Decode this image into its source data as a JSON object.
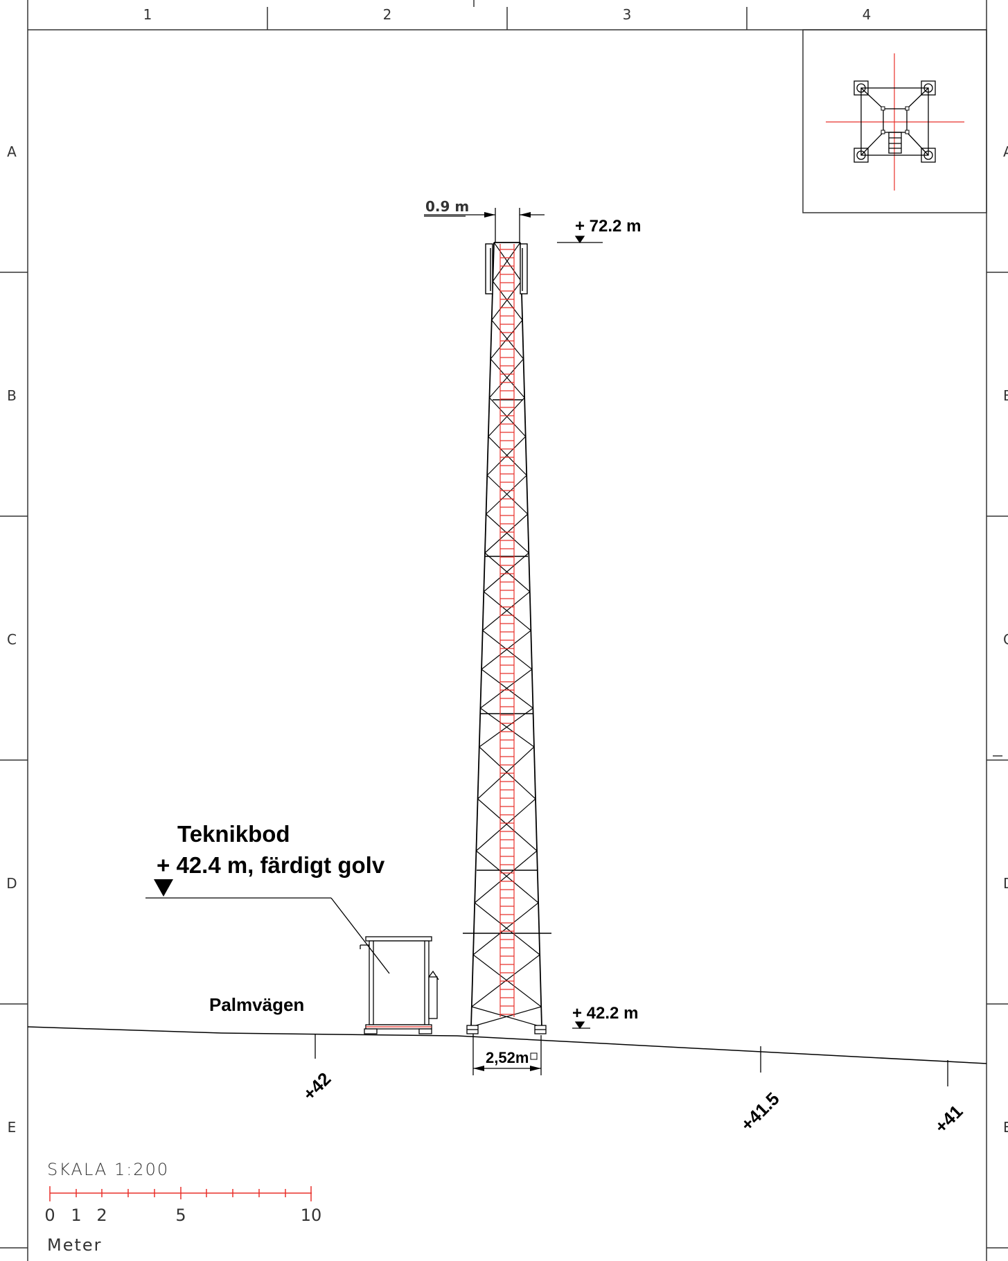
{
  "frame": {
    "columns": [
      "1",
      "2",
      "3",
      "4"
    ],
    "rows": [
      "A",
      "B",
      "C",
      "D",
      "E"
    ]
  },
  "tower": {
    "top_width": "0.9 m",
    "top_elevation": "+ 72.2 m",
    "base_elevation": "+ 42.2 m",
    "base_width": "2,52m"
  },
  "building": {
    "name": "Teknikbod",
    "floor_elevation": "+ 42.4 m, färdigt golv"
  },
  "road": {
    "name": "Palmvägen"
  },
  "ground_levels": [
    "+42",
    "+41.5",
    "+41"
  ],
  "scale": {
    "title": "SKALA 1:200",
    "ticks": [
      "0",
      "1",
      "2",
      "5",
      "10"
    ],
    "unit": "Meter"
  },
  "colors": {
    "line": "#000000",
    "ladder": "#e8302a",
    "frame": "#333333"
  }
}
